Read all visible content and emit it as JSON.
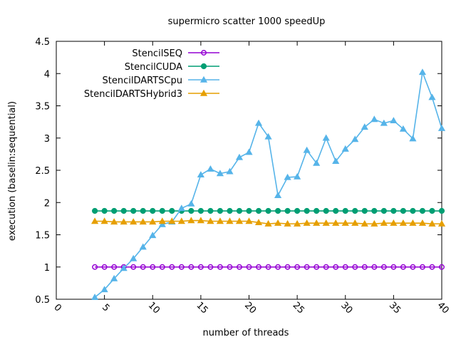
{
  "chart_data": {
    "type": "line",
    "title": "supermicro scatter 1000 speedUp",
    "xlabel": "number of threads",
    "ylabel": "execution (baselin:sequential)",
    "xlim": [
      0,
      40
    ],
    "ylim": [
      0.5,
      4.5
    ],
    "xticks": [
      "0",
      "5",
      "10",
      "15",
      "20",
      "25",
      "30",
      "35",
      "40"
    ],
    "yticks": [
      "0.5",
      "1",
      "1.5",
      "2",
      "2.5",
      "3",
      "3.5",
      "4",
      "4.5"
    ],
    "legend_position": "top-left",
    "grid": false,
    "series": [
      {
        "name": "StencilSEQ",
        "color": "#9400d3",
        "marker": "circle-open",
        "x": [
          4,
          5,
          6,
          7,
          8,
          9,
          10,
          11,
          12,
          13,
          14,
          15,
          16,
          17,
          18,
          19,
          20,
          21,
          22,
          23,
          24,
          25,
          26,
          27,
          28,
          29,
          30,
          31,
          32,
          33,
          34,
          35,
          36,
          37,
          38,
          39,
          40
        ],
        "y": [
          1,
          1,
          1,
          1,
          1,
          1,
          1,
          1,
          1,
          1,
          1,
          1,
          1,
          1,
          1,
          1,
          1,
          1,
          1,
          1,
          1,
          1,
          1,
          1,
          1,
          1,
          1,
          1,
          1,
          1,
          1,
          1,
          1,
          1,
          1,
          1,
          1
        ]
      },
      {
        "name": "StencilCUDA",
        "color": "#009e73",
        "marker": "circle-filled",
        "x": [
          4,
          5,
          6,
          7,
          8,
          9,
          10,
          11,
          12,
          13,
          14,
          15,
          16,
          17,
          18,
          19,
          20,
          21,
          22,
          23,
          24,
          25,
          26,
          27,
          28,
          29,
          30,
          31,
          32,
          33,
          34,
          35,
          36,
          37,
          38,
          39,
          40
        ],
        "y": [
          1.87,
          1.87,
          1.87,
          1.87,
          1.87,
          1.87,
          1.87,
          1.87,
          1.87,
          1.87,
          1.87,
          1.87,
          1.87,
          1.87,
          1.87,
          1.87,
          1.87,
          1.87,
          1.87,
          1.87,
          1.87,
          1.87,
          1.87,
          1.87,
          1.87,
          1.87,
          1.87,
          1.87,
          1.87,
          1.87,
          1.87,
          1.87,
          1.87,
          1.87,
          1.87,
          1.87,
          1.87
        ]
      },
      {
        "name": "StencilDARTSCpu",
        "color": "#56b4e9",
        "marker": "triangle-filled",
        "x": [
          4,
          5,
          6,
          7,
          8,
          9,
          10,
          11,
          12,
          13,
          14,
          15,
          16,
          17,
          18,
          19,
          20,
          21,
          22,
          23,
          24,
          25,
          26,
          27,
          28,
          29,
          30,
          31,
          32,
          33,
          34,
          35,
          36,
          37,
          38,
          39,
          40
        ],
        "y": [
          0.53,
          0.65,
          0.82,
          0.98,
          1.13,
          1.31,
          1.49,
          1.66,
          1.7,
          1.91,
          1.98,
          2.43,
          2.52,
          2.45,
          2.48,
          2.7,
          2.78,
          3.23,
          3.02,
          2.11,
          2.39,
          2.4,
          2.81,
          2.61,
          3.0,
          2.64,
          2.83,
          2.98,
          3.17,
          3.29,
          3.23,
          3.27,
          3.14,
          2.99,
          4.02,
          3.63,
          3.15
        ]
      },
      {
        "name": "StencilDARTSHybrid3",
        "color": "#e69f00",
        "marker": "triangle-filled",
        "x": [
          4,
          5,
          6,
          7,
          8,
          9,
          10,
          11,
          12,
          13,
          14,
          15,
          16,
          17,
          18,
          19,
          20,
          21,
          22,
          23,
          24,
          25,
          26,
          27,
          28,
          29,
          30,
          31,
          32,
          33,
          34,
          35,
          36,
          37,
          38,
          39,
          40
        ],
        "y": [
          1.71,
          1.71,
          1.7,
          1.7,
          1.7,
          1.7,
          1.7,
          1.71,
          1.71,
          1.71,
          1.72,
          1.72,
          1.71,
          1.71,
          1.71,
          1.71,
          1.71,
          1.69,
          1.67,
          1.68,
          1.67,
          1.67,
          1.68,
          1.68,
          1.68,
          1.68,
          1.68,
          1.68,
          1.67,
          1.67,
          1.68,
          1.68,
          1.68,
          1.68,
          1.68,
          1.67,
          1.67
        ]
      }
    ]
  }
}
